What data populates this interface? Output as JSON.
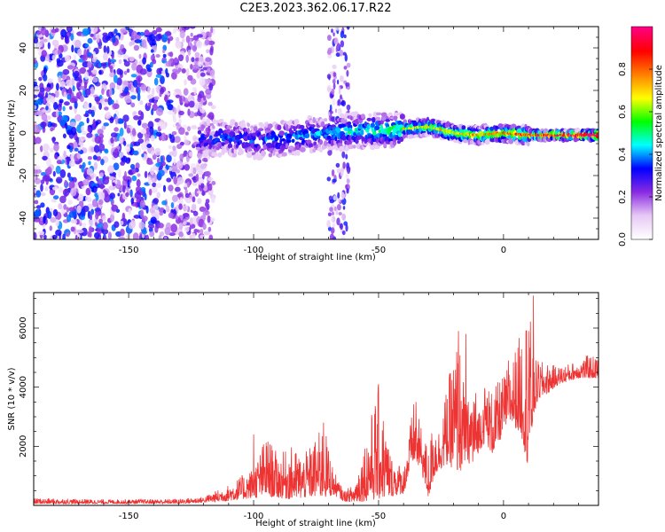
{
  "title": "C2E3.2023.362.06.17.R22",
  "chart_data": [
    {
      "type": "heatmap",
      "xlabel": "Height of straight line (km)",
      "ylabel": "Frequency (Hz)",
      "xlim": [
        -188,
        38
      ],
      "ylim": [
        -50,
        50
      ],
      "xticks": [
        -150,
        -100,
        -50,
        0
      ],
      "yticks": [
        -40,
        -20,
        0,
        20,
        40
      ],
      "grid": false,
      "colorbar": {
        "label": "Normalized spectral amplitude",
        "range": [
          0,
          1
        ],
        "ticks": [
          "0.0",
          "0.2",
          "0.4",
          "0.6",
          "0.8"
        ],
        "colors": [
          "#ffffff",
          "#e6c8f5",
          "#8a2be2",
          "#0000ff",
          "#00ffff",
          "#00ff00",
          "#ffff00",
          "#ff8000",
          "#ff0000",
          "#ff0080"
        ]
      },
      "ridge": {
        "x": [
          -122,
          -110,
          -100,
          -90,
          -80,
          -70,
          -60,
          -50,
          -40,
          -30,
          -20,
          -10,
          0,
          10,
          20,
          30,
          38
        ],
        "frequency": [
          -3,
          -2,
          -4,
          -3,
          -1,
          0,
          1,
          1,
          2,
          3,
          0,
          -1,
          0,
          -1,
          -1,
          -1,
          -1
        ],
        "amplitude": [
          0.35,
          0.35,
          0.35,
          0.4,
          0.4,
          0.4,
          0.45,
          0.5,
          0.55,
          0.6,
          0.6,
          0.65,
          0.7,
          0.75,
          0.85,
          0.95,
          1.0
        ]
      },
      "noise_region": {
        "x_range": [
          -188,
          -122
        ],
        "amplitude_max": 0.35
      },
      "vertical_streak": {
        "x_range": [
          -70,
          -62
        ],
        "amplitude_max": 0.3
      }
    },
    {
      "type": "line",
      "xlabel": "Height of straight line (km)",
      "ylabel": "SNR (10 * v/v)",
      "xlim": [
        -188,
        38
      ],
      "ylim": [
        0,
        7200
      ],
      "xticks": [
        -150,
        -100,
        -50,
        0
      ],
      "yticks": [
        2000,
        4000,
        6000
      ],
      "grid": false,
      "color": "#ee3333",
      "envelope": {
        "x": [
          -188,
          -160,
          -130,
          -120,
          -110,
          -100,
          -95,
          -90,
          -85,
          -80,
          -75,
          -72,
          -68,
          -64,
          -60,
          -55,
          -50,
          -45,
          -40,
          -36,
          -33,
          -30,
          -28,
          -26,
          -22,
          -18,
          -15,
          -12,
          -10,
          -7,
          -5,
          -2,
          0,
          3,
          7,
          10,
          12,
          14,
          18,
          22,
          26,
          30,
          34,
          38
        ],
        "low": [
          50,
          60,
          60,
          100,
          150,
          250,
          300,
          250,
          200,
          250,
          300,
          250,
          350,
          150,
          100,
          150,
          200,
          300,
          400,
          1500,
          1200,
          200,
          900,
          1200,
          1400,
          1000,
          1500,
          1300,
          1800,
          2200,
          1700,
          2000,
          2600,
          2800,
          2400,
          1200,
          3000,
          3600,
          3800,
          4100,
          4200,
          4300,
          4300,
          4300
        ],
        "high": [
          250,
          200,
          220,
          300,
          700,
          1300,
          2400,
          1700,
          2000,
          1700,
          2300,
          2800,
          1200,
          500,
          700,
          2400,
          4100,
          1700,
          1300,
          3500,
          2700,
          1900,
          3000,
          2600,
          4300,
          5900,
          3300,
          4400,
          3400,
          4300,
          3900,
          4200,
          4400,
          4900,
          5900,
          7100,
          5000,
          4900,
          4800,
          4700,
          4800,
          4900,
          5100,
          5000
        ]
      },
      "spikes": [
        {
          "x": 12,
          "y": 7100
        },
        {
          "x": 10,
          "y": 5900
        },
        {
          "x": -18,
          "y": 5900
        },
        {
          "x": -15,
          "y": 5800
        },
        {
          "x": -50,
          "y": 4100
        },
        {
          "x": -72,
          "y": 2800
        },
        {
          "x": -100,
          "y": 2400
        },
        {
          "x": -35,
          "y": 3500
        },
        {
          "x": 2,
          "y": 4900
        }
      ]
    }
  ]
}
